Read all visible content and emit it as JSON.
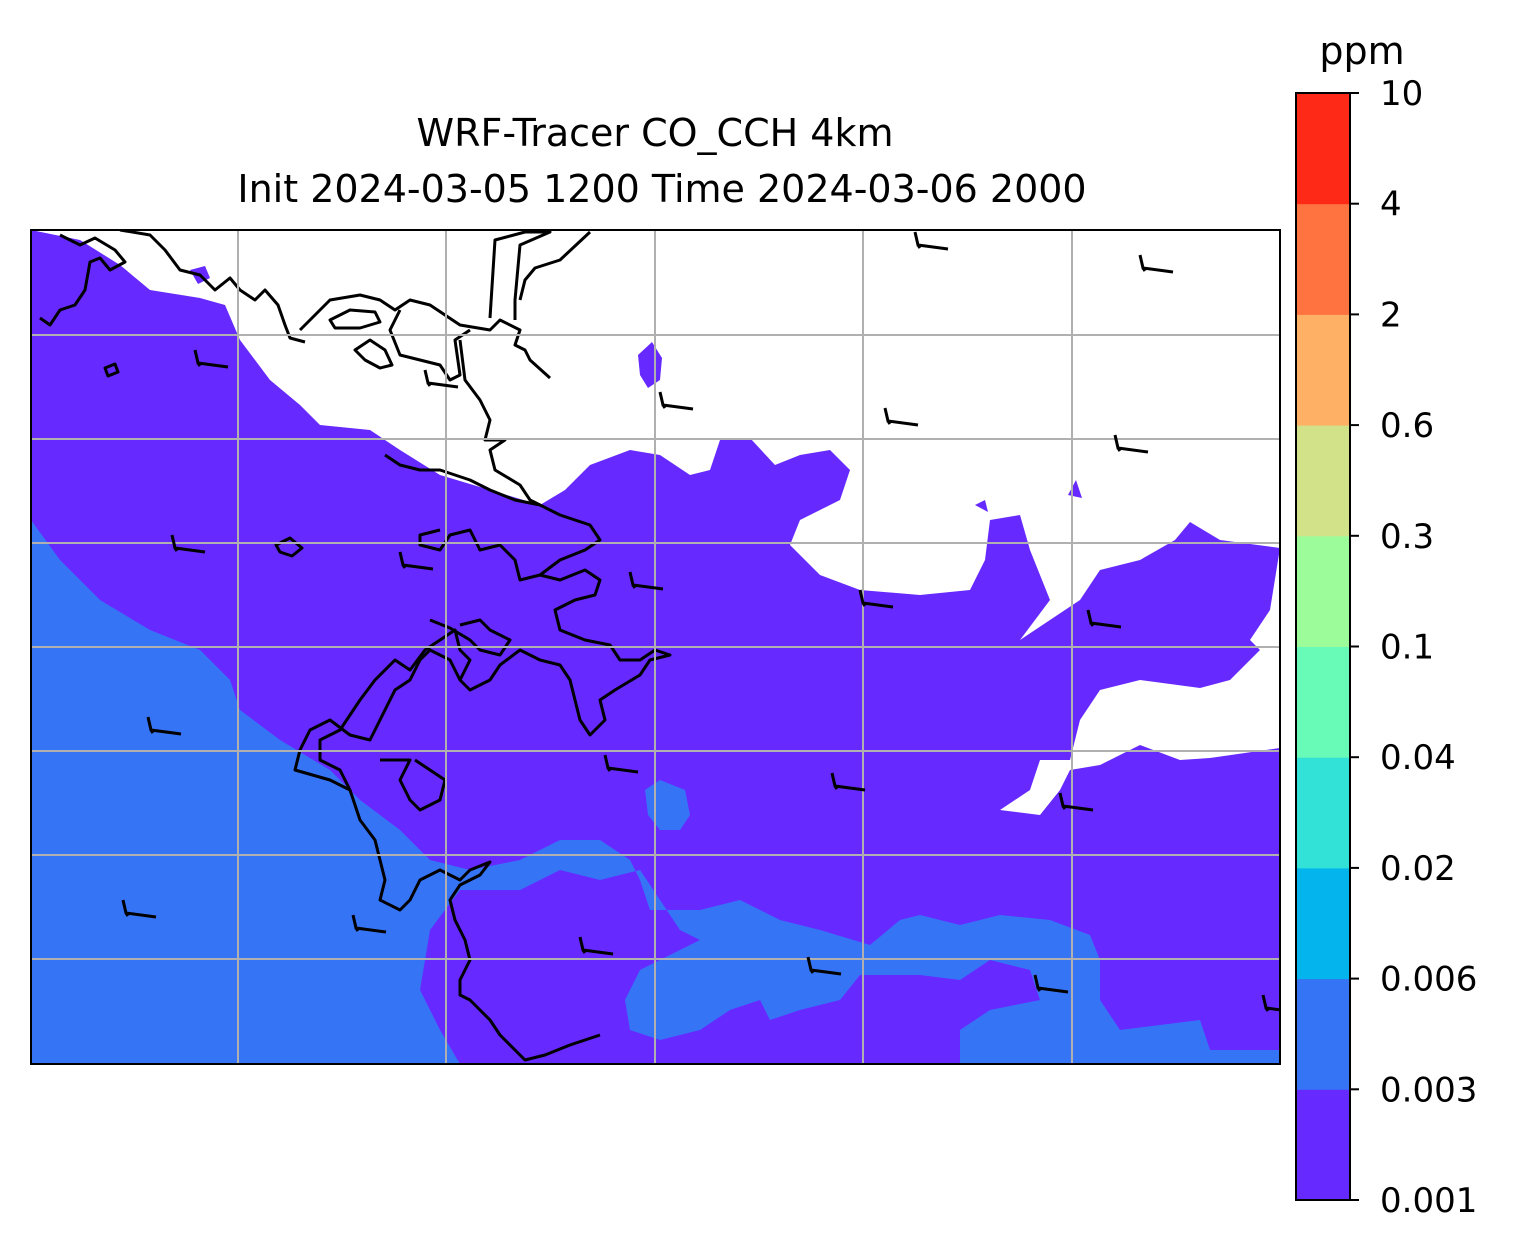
{
  "title_line1": "WRF-Tracer CO_CCH 4km",
  "title_line2": "Init 2024-03-05 1200 Time 2024-03-06 2000",
  "colorbar": {
    "unit_label": "ppm",
    "levels": [
      "0.001",
      "0.003",
      "0.006",
      "0.02",
      "0.04",
      "0.1",
      "0.3",
      "0.6",
      "2",
      "4",
      "10"
    ],
    "colors": [
      "#6629ff",
      "#3674f6",
      "#03b5ec",
      "#32e2d6",
      "#68fbb7",
      "#9dfc9a",
      "#d1e288",
      "#feb165",
      "#fe7340",
      "#fe2a17"
    ]
  },
  "map_colors": {
    "low_band": "#6629ff",
    "second_band": "#3674f6",
    "coastline": "#000000",
    "gridline": "#b0b0b0"
  }
}
